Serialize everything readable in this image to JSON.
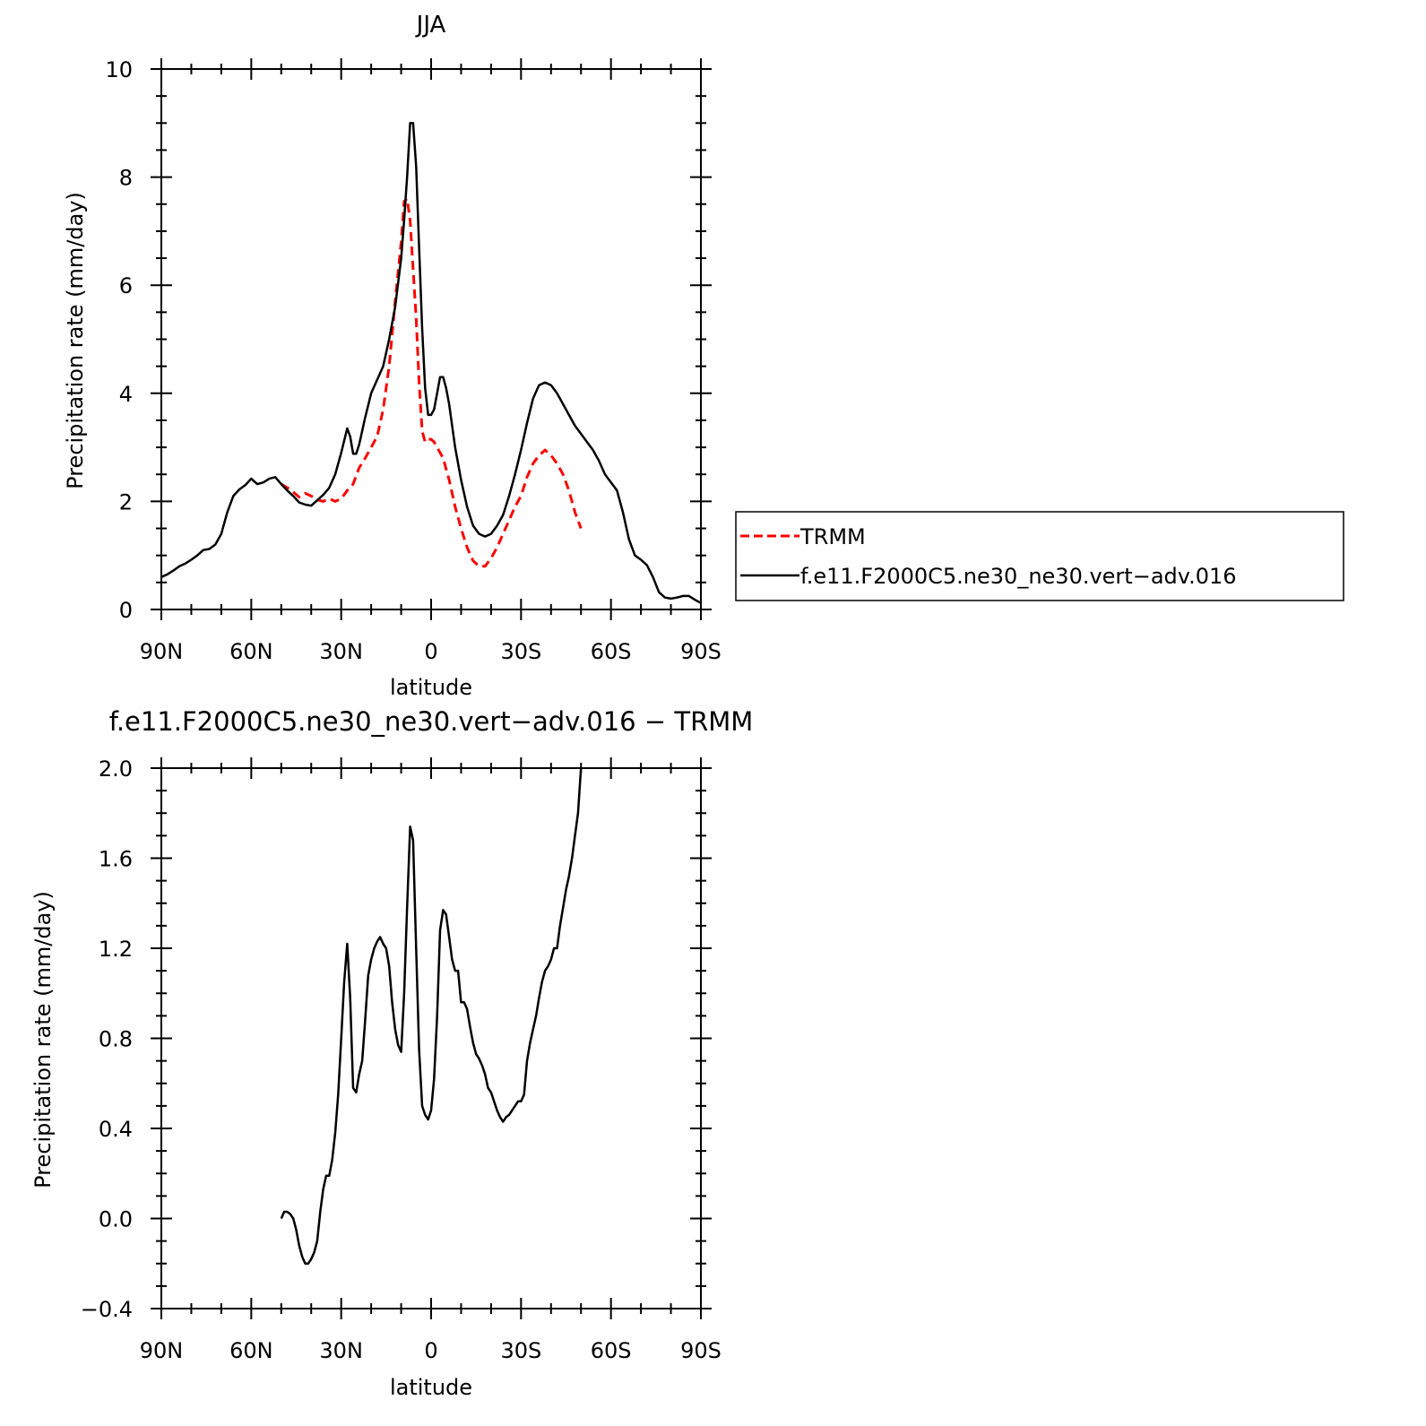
{
  "chart_data": [
    {
      "type": "line",
      "title": "JJA",
      "xlabel": "latitude",
      "ylabel": "Precipitation rate (mm/day)",
      "xlim": [
        90,
        -90
      ],
      "ylim": [
        0,
        10
      ],
      "xticks": [
        90,
        60,
        30,
        0,
        -30,
        -60,
        -90
      ],
      "xtick_labels": [
        "90N",
        "60N",
        "30N",
        "0",
        "30S",
        "60S",
        "90S"
      ],
      "yticks": [
        0,
        2,
        4,
        6,
        8,
        10
      ],
      "ytick_labels": [
        "0",
        "2",
        "4",
        "6",
        "8",
        "10"
      ],
      "legend_position": "right",
      "series": [
        {
          "name": "TRMM",
          "color": "#ff0000",
          "dash": "dashed",
          "x": [
            50,
            47,
            44,
            42,
            40,
            38,
            36,
            34,
            32,
            30,
            28,
            26,
            24,
            22,
            20,
            18,
            16,
            14,
            12,
            10,
            9,
            8,
            7,
            6,
            5,
            4,
            3,
            2,
            1,
            0,
            -1,
            -2,
            -4,
            -6,
            -8,
            -10,
            -12,
            -14,
            -16,
            -18,
            -20,
            -22,
            -24,
            -26,
            -28,
            -30,
            -32,
            -34,
            -36,
            -38,
            -40,
            -42,
            -44,
            -46,
            -48,
            -50
          ],
          "y": [
            2.32,
            2.22,
            2.08,
            2.15,
            2.1,
            2.03,
            2.0,
            2.05,
            2.0,
            2.05,
            2.2,
            2.32,
            2.62,
            2.8,
            3.0,
            3.2,
            3.7,
            4.5,
            5.7,
            6.8,
            7.55,
            7.6,
            7.2,
            6.3,
            5.4,
            4.2,
            3.3,
            3.1,
            3.15,
            3.15,
            3.1,
            3.0,
            2.8,
            2.4,
            1.9,
            1.5,
            1.15,
            0.9,
            0.8,
            0.8,
            0.95,
            1.15,
            1.4,
            1.65,
            1.9,
            2.1,
            2.45,
            2.7,
            2.85,
            2.95,
            2.85,
            2.7,
            2.5,
            2.2,
            1.8,
            1.5
          ]
        },
        {
          "name": "f.e11.F2000C5.ne30_ne30.vert−adv.016",
          "color": "#000000",
          "dash": "solid",
          "x": [
            90,
            88,
            86,
            84,
            82,
            80,
            78,
            76,
            74,
            72,
            70,
            68,
            66,
            64,
            62,
            60,
            58,
            56,
            54,
            52,
            50,
            48,
            46,
            44,
            42,
            40,
            38,
            36,
            34,
            32,
            30,
            28,
            27,
            26,
            25,
            24,
            22,
            20,
            18,
            16,
            14,
            12,
            10,
            9,
            8,
            7,
            6,
            5,
            4,
            3,
            2,
            1,
            0,
            -1,
            -2,
            -3,
            -4,
            -5,
            -6,
            -8,
            -10,
            -12,
            -14,
            -16,
            -18,
            -20,
            -22,
            -24,
            -26,
            -28,
            -30,
            -32,
            -34,
            -36,
            -38,
            -40,
            -42,
            -44,
            -46,
            -48,
            -50,
            -52,
            -54,
            -56,
            -58,
            -60,
            -62,
            -64,
            -66,
            -68,
            -70,
            -72,
            -74,
            -76,
            -78,
            -80,
            -82,
            -84,
            -86,
            -88,
            -90
          ],
          "y": [
            0.6,
            0.65,
            0.72,
            0.8,
            0.85,
            0.92,
            1.0,
            1.1,
            1.12,
            1.2,
            1.4,
            1.8,
            2.1,
            2.22,
            2.3,
            2.42,
            2.32,
            2.35,
            2.42,
            2.45,
            2.32,
            2.2,
            2.1,
            1.98,
            1.94,
            1.92,
            2.02,
            2.12,
            2.25,
            2.5,
            2.9,
            3.35,
            3.2,
            2.88,
            2.88,
            3.05,
            3.55,
            4.0,
            4.25,
            4.5,
            5.0,
            5.6,
            6.5,
            7.2,
            8.0,
            9.0,
            9.0,
            8.2,
            6.7,
            5.2,
            4.1,
            3.6,
            3.6,
            3.7,
            4.0,
            4.3,
            4.3,
            4.1,
            3.8,
            3.0,
            2.4,
            1.9,
            1.55,
            1.4,
            1.35,
            1.4,
            1.55,
            1.75,
            2.1,
            2.5,
            2.95,
            3.45,
            3.9,
            4.15,
            4.2,
            4.15,
            4.0,
            3.8,
            3.6,
            3.4,
            3.25,
            3.1,
            2.95,
            2.75,
            2.5,
            2.35,
            2.2,
            1.8,
            1.3,
            1.0,
            0.92,
            0.82,
            0.6,
            0.32,
            0.22,
            0.2,
            0.22,
            0.25,
            0.25,
            0.18,
            0.12
          ]
        }
      ]
    },
    {
      "type": "line",
      "title": "f.e11.F2000C5.ne30_ne30.vert−adv.016 − TRMM",
      "xlabel": "latitude",
      "ylabel": "Precipitation rate (mm/day)",
      "xlim": [
        90,
        -90
      ],
      "ylim": [
        -0.4,
        2.0
      ],
      "xticks": [
        90,
        60,
        30,
        0,
        -30,
        -60,
        -90
      ],
      "xtick_labels": [
        "90N",
        "60N",
        "30N",
        "0",
        "30S",
        "60S",
        "90S"
      ],
      "yticks": [
        -0.4,
        0.0,
        0.4,
        0.8,
        1.2,
        1.6,
        2.0
      ],
      "ytick_labels": [
        "−0.4",
        "0.0",
        "0.4",
        "0.8",
        "1.2",
        "1.6",
        "2.0"
      ],
      "series": [
        {
          "color": "#000000",
          "dash": "solid",
          "x": [
            50,
            49,
            48,
            47,
            46,
            45,
            44,
            43,
            42,
            41,
            40,
            39,
            38,
            37,
            36,
            35,
            34,
            33,
            32,
            31,
            30,
            29,
            28,
            27,
            26,
            25,
            24,
            23,
            22,
            21,
            20,
            19,
            18,
            17,
            16,
            15,
            14,
            13,
            12,
            11,
            10,
            9,
            8,
            7,
            6,
            5,
            4,
            3,
            2,
            1,
            0,
            -1,
            -2,
            -3,
            -4,
            -5,
            -6,
            -7,
            -8,
            -9,
            -10,
            -11,
            -12,
            -13,
            -14,
            -15,
            -16,
            -17,
            -18,
            -19,
            -20,
            -21,
            -22,
            -23,
            -24,
            -25,
            -26,
            -27,
            -28,
            -29,
            -30,
            -31,
            -32,
            -33,
            -34,
            -35,
            -36,
            -37,
            -38,
            -39,
            -40,
            -41,
            -42,
            -43,
            -44,
            -45,
            -46,
            -47,
            -48,
            -49,
            -50
          ],
          "y": [
            0.0,
            0.03,
            0.03,
            0.02,
            0.0,
            -0.05,
            -0.12,
            -0.17,
            -0.2,
            -0.2,
            -0.18,
            -0.15,
            -0.1,
            0.03,
            0.13,
            0.19,
            0.19,
            0.26,
            0.38,
            0.55,
            0.8,
            1.05,
            1.22,
            0.98,
            0.58,
            0.56,
            0.64,
            0.7,
            0.88,
            1.08,
            1.15,
            1.2,
            1.23,
            1.25,
            1.22,
            1.2,
            1.12,
            0.96,
            0.84,
            0.77,
            0.74,
            1.0,
            1.38,
            1.74,
            1.68,
            1.2,
            0.75,
            0.5,
            0.46,
            0.44,
            0.48,
            0.62,
            0.9,
            1.28,
            1.37,
            1.35,
            1.25,
            1.15,
            1.1,
            1.1,
            0.96,
            0.96,
            0.93,
            0.85,
            0.78,
            0.73,
            0.71,
            0.68,
            0.64,
            0.58,
            0.56,
            0.52,
            0.48,
            0.45,
            0.43,
            0.45,
            0.46,
            0.48,
            0.5,
            0.52,
            0.52,
            0.55,
            0.7,
            0.78,
            0.84,
            0.9,
            0.98,
            1.05,
            1.1,
            1.12,
            1.15,
            1.2,
            1.2,
            1.3,
            1.38,
            1.46,
            1.52,
            1.6,
            1.7,
            1.8,
            2.0
          ]
        }
      ]
    }
  ]
}
